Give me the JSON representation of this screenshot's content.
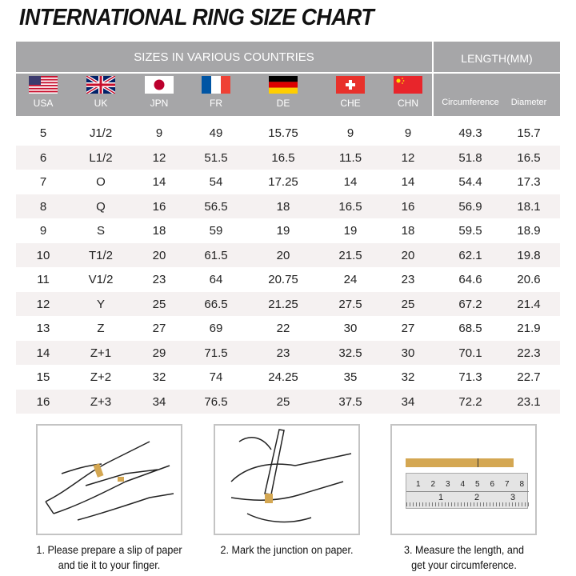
{
  "title": "INTERNATIONAL RING SIZE CHART",
  "header": {
    "sizes_label": "SIZES IN VARIOUS COUNTRIES",
    "length_label": "LENGTH(MM)",
    "columns": [
      {
        "label": "USA",
        "flag": "usa-flag"
      },
      {
        "label": "UK",
        "flag": "uk-flag"
      },
      {
        "label": "JPN",
        "flag": "japan-flag"
      },
      {
        "label": "FR",
        "flag": "france-flag"
      },
      {
        "label": "DE",
        "flag": "germany-flag"
      },
      {
        "label": "CHE",
        "flag": "switzerland-flag"
      },
      {
        "label": "CHN",
        "flag": "china-flag"
      },
      {
        "label": "Circumference"
      },
      {
        "label": "Diameter"
      }
    ]
  },
  "rows": [
    [
      "5",
      "J1/2",
      "9",
      "49",
      "15.75",
      "9",
      "9",
      "49.3",
      "15.7"
    ],
    [
      "6",
      "L1/2",
      "12",
      "51.5",
      "16.5",
      "11.5",
      "12",
      "51.8",
      "16.5"
    ],
    [
      "7",
      "O",
      "14",
      "54",
      "17.25",
      "14",
      "14",
      "54.4",
      "17.3"
    ],
    [
      "8",
      "Q",
      "16",
      "56.5",
      "18",
      "16.5",
      "16",
      "56.9",
      "18.1"
    ],
    [
      "9",
      "S",
      "18",
      "59",
      "19",
      "19",
      "18",
      "59.5",
      "18.9"
    ],
    [
      "10",
      "T1/2",
      "20",
      "61.5",
      "20",
      "21.5",
      "20",
      "62.1",
      "19.8"
    ],
    [
      "11",
      "V1/2",
      "23",
      "64",
      "20.75",
      "24",
      "23",
      "64.6",
      "20.6"
    ],
    [
      "12",
      "Y",
      "25",
      "66.5",
      "21.25",
      "27.5",
      "25",
      "67.2",
      "21.4"
    ],
    [
      "13",
      "Z",
      "27",
      "69",
      "22",
      "30",
      "27",
      "68.5",
      "21.9"
    ],
    [
      "14",
      "Z+1",
      "29",
      "71.5",
      "23",
      "32.5",
      "30",
      "70.1",
      "22.3"
    ],
    [
      "15",
      "Z+2",
      "32",
      "74",
      "24.25",
      "35",
      "32",
      "71.3",
      "22.7"
    ],
    [
      "16",
      "Z+3",
      "34",
      "76.5",
      "25",
      "37.5",
      "34",
      "72.2",
      "23.1"
    ]
  ],
  "steps": [
    {
      "line1": "1. Please prepare a slip of paper",
      "line2": "and tie it to your finger."
    },
    {
      "line1": "2. Mark the junction on paper.",
      "line2": ""
    },
    {
      "line1": "3. Measure the length, and",
      "line2": "get your circumference."
    }
  ],
  "ruler": {
    "cm_ticks": [
      "1",
      "2",
      "3",
      "4",
      "5",
      "6",
      "7",
      "8"
    ],
    "inch_ticks": [
      "1",
      "2",
      "3"
    ]
  },
  "colors": {
    "header": "#a6a6a8",
    "row_alt": "#f5f1f1",
    "paper_strip": "#d4a752"
  }
}
